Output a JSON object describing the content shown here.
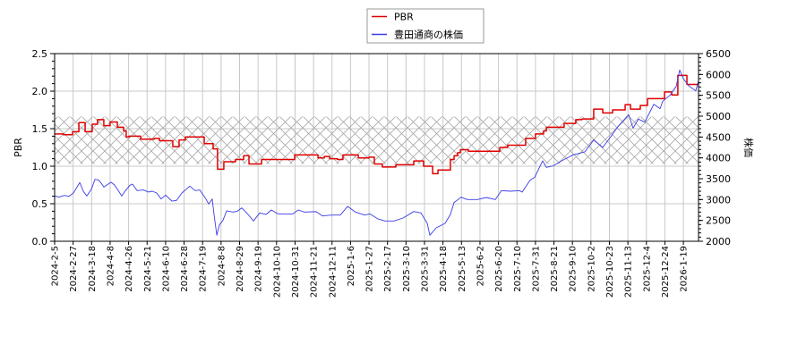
{
  "chart_data": {
    "type": "line",
    "title": "",
    "xlabel": "",
    "ylabel": "PBR",
    "y2label": "株価",
    "ylim": [
      0.0,
      2.5
    ],
    "y2lim": [
      2000,
      6500
    ],
    "grid": true,
    "legend_position": "top-center",
    "legend": [
      {
        "label": "PBR",
        "color": "#e00000"
      },
      {
        "label": "豊田通商の株価",
        "color": "#3a3ae6"
      }
    ],
    "y_ticks": [
      "0.0",
      "0.5",
      "1.0",
      "1.5",
      "2.0",
      "2.5"
    ],
    "y_tick_values": [
      0.0,
      0.5,
      1.0,
      1.5,
      2.0,
      2.5
    ],
    "y2_ticks": [
      "2000",
      "2500",
      "3000",
      "3500",
      "4000",
      "4500",
      "5000",
      "5500",
      "6000",
      "6500"
    ],
    "y2_tick_values": [
      2000,
      2500,
      3000,
      3500,
      4000,
      4500,
      5000,
      5500,
      6000,
      6500
    ],
    "categories": [
      "2024-2-5",
      "2024-2-27",
      "2024-3-18",
      "2024-4-8",
      "2024-4-26",
      "2024-5-21",
      "2024-6-10",
      "2024-6-28",
      "2024-7-19",
      "2024-8-8",
      "2024-8-29",
      "2024-9-19",
      "2024-10-10",
      "2024-10-31",
      "2024-11-21",
      "2024-12-11",
      "2025-1-6",
      "2025-1-27",
      "2025-2-17",
      "2025-3-10",
      "2025-3-31",
      "2025-4-18",
      "2025-5-13",
      "2025-6-2",
      "2025-6-20",
      "2025-7-10",
      "2025-7-31",
      "2025-8-21",
      "2025-9-10",
      "2025-10-2",
      "2025-10-23",
      "2025-11-13",
      "2025-12-4",
      "2025-12-24",
      "2026-1-19"
    ],
    "shaded_band": {
      "axis": "y",
      "from": 1.03,
      "to": 1.66,
      "style": "crosshatch",
      "color": "#a0a0a0"
    },
    "series": [
      {
        "name": "PBR",
        "axis": "left",
        "color": "#e00000",
        "step": true,
        "points": [
          [
            0,
            1.43
          ],
          [
            0.48,
            1.42
          ],
          [
            0.97,
            1.46
          ],
          [
            1.31,
            1.58
          ],
          [
            1.65,
            1.46
          ],
          [
            2.03,
            1.56
          ],
          [
            2.32,
            1.62
          ],
          [
            2.66,
            1.54
          ],
          [
            3.0,
            1.59
          ],
          [
            3.39,
            1.52
          ],
          [
            3.73,
            1.47
          ],
          [
            3.87,
            1.39
          ],
          [
            4.02,
            1.4
          ],
          [
            4.65,
            1.36
          ],
          [
            5.38,
            1.37
          ],
          [
            5.67,
            1.34
          ],
          [
            6.39,
            1.26
          ],
          [
            6.73,
            1.35
          ],
          [
            7.07,
            1.39
          ],
          [
            8.09,
            1.3
          ],
          [
            8.57,
            1.23
          ],
          [
            8.81,
            0.96
          ],
          [
            9.15,
            1.06
          ],
          [
            9.78,
            1.09
          ],
          [
            10.22,
            1.14
          ],
          [
            10.51,
            1.03
          ],
          [
            11.19,
            1.09
          ],
          [
            12.98,
            1.15
          ],
          [
            14.24,
            1.11
          ],
          [
            14.58,
            1.13
          ],
          [
            14.87,
            1.1
          ],
          [
            15.3,
            1.09
          ],
          [
            15.59,
            1.15
          ],
          [
            16.42,
            1.11
          ],
          [
            17.0,
            1.12
          ],
          [
            17.29,
            1.03
          ],
          [
            17.72,
            0.99
          ],
          [
            18.45,
            1.02
          ],
          [
            19.42,
            1.07
          ],
          [
            19.95,
            1.0
          ],
          [
            20.44,
            0.9
          ],
          [
            20.73,
            0.95
          ],
          [
            21.4,
            1.09
          ],
          [
            21.6,
            1.14
          ],
          [
            21.79,
            1.18
          ],
          [
            21.94,
            1.22
          ],
          [
            22.37,
            1.2
          ],
          [
            24.07,
            1.25
          ],
          [
            24.5,
            1.28
          ],
          [
            25.47,
            1.37
          ],
          [
            26.0,
            1.43
          ],
          [
            26.44,
            1.47
          ],
          [
            26.59,
            1.52
          ],
          [
            27.55,
            1.57
          ],
          [
            28.18,
            1.62
          ],
          [
            28.52,
            1.63
          ],
          [
            29.15,
            1.76
          ],
          [
            29.64,
            1.71
          ],
          [
            30.17,
            1.75
          ],
          [
            30.85,
            1.82
          ],
          [
            31.14,
            1.76
          ],
          [
            31.67,
            1.81
          ],
          [
            32.06,
            1.9
          ],
          [
            32.98,
            1.99
          ],
          [
            33.37,
            1.95
          ],
          [
            33.7,
            2.21
          ],
          [
            34.19,
            2.09
          ],
          [
            34.82,
            2.09
          ]
        ]
      },
      {
        "name": "豊田通商の株価",
        "axis": "right",
        "color": "#3a3ae6",
        "step": false,
        "points": [
          [
            0,
            3085
          ],
          [
            0.24,
            3060
          ],
          [
            0.53,
            3100
          ],
          [
            0.77,
            3075
          ],
          [
            1.02,
            3160
          ],
          [
            1.21,
            3300
          ],
          [
            1.36,
            3410
          ],
          [
            1.55,
            3200
          ],
          [
            1.74,
            3086
          ],
          [
            1.99,
            3250
          ],
          [
            2.18,
            3485
          ],
          [
            2.37,
            3470
          ],
          [
            2.52,
            3393
          ],
          [
            2.66,
            3300
          ],
          [
            2.86,
            3360
          ],
          [
            3.05,
            3414
          ],
          [
            3.24,
            3350
          ],
          [
            3.44,
            3215
          ],
          [
            3.63,
            3086
          ],
          [
            3.83,
            3215
          ],
          [
            4.07,
            3343
          ],
          [
            4.21,
            3371
          ],
          [
            4.46,
            3215
          ],
          [
            4.79,
            3230
          ],
          [
            5.08,
            3179
          ],
          [
            5.28,
            3200
          ],
          [
            5.52,
            3157
          ],
          [
            5.76,
            3014
          ],
          [
            6.0,
            3107
          ],
          [
            6.34,
            2964
          ],
          [
            6.59,
            2980
          ],
          [
            6.88,
            3157
          ],
          [
            7.12,
            3250
          ],
          [
            7.31,
            3322
          ],
          [
            7.6,
            3215
          ],
          [
            7.85,
            3230
          ],
          [
            8.18,
            3014
          ],
          [
            8.33,
            2893
          ],
          [
            8.52,
            3014
          ],
          [
            8.62,
            2643
          ],
          [
            8.77,
            2143
          ],
          [
            8.91,
            2393
          ],
          [
            9.1,
            2500
          ],
          [
            9.3,
            2729
          ],
          [
            9.64,
            2700
          ],
          [
            9.88,
            2720
          ],
          [
            10.12,
            2800
          ],
          [
            10.46,
            2643
          ],
          [
            10.75,
            2486
          ],
          [
            11.09,
            2679
          ],
          [
            11.43,
            2643
          ],
          [
            11.72,
            2750
          ],
          [
            12.06,
            2660
          ],
          [
            12.54,
            2650
          ],
          [
            12.88,
            2657
          ],
          [
            13.17,
            2750
          ],
          [
            13.51,
            2700
          ],
          [
            14.14,
            2710
          ],
          [
            14.48,
            2607
          ],
          [
            14.96,
            2629
          ],
          [
            15.45,
            2629
          ],
          [
            15.84,
            2836
          ],
          [
            16.27,
            2700
          ],
          [
            16.76,
            2629
          ],
          [
            17.05,
            2657
          ],
          [
            17.48,
            2536
          ],
          [
            17.87,
            2486
          ],
          [
            18.35,
            2486
          ],
          [
            18.84,
            2557
          ],
          [
            19.42,
            2714
          ],
          [
            19.81,
            2679
          ],
          [
            20.15,
            2429
          ],
          [
            20.29,
            2143
          ],
          [
            20.63,
            2321
          ],
          [
            21.11,
            2429
          ],
          [
            21.4,
            2643
          ],
          [
            21.6,
            2929
          ],
          [
            21.98,
            3057
          ],
          [
            22.32,
            3000
          ],
          [
            22.86,
            3000
          ],
          [
            23.34,
            3050
          ],
          [
            23.83,
            3000
          ],
          [
            24.16,
            3215
          ],
          [
            24.65,
            3200
          ],
          [
            25.13,
            3215
          ],
          [
            25.28,
            3179
          ],
          [
            25.71,
            3464
          ],
          [
            25.96,
            3536
          ],
          [
            26.39,
            3929
          ],
          [
            26.59,
            3772
          ],
          [
            26.97,
            3810
          ],
          [
            27.41,
            3929
          ],
          [
            28.04,
            4072
          ],
          [
            28.67,
            4143
          ],
          [
            29.15,
            4429
          ],
          [
            29.64,
            4250
          ],
          [
            30.12,
            4536
          ],
          [
            30.46,
            4750
          ],
          [
            31.04,
            5036
          ],
          [
            31.28,
            4714
          ],
          [
            31.57,
            4929
          ],
          [
            31.91,
            4857
          ],
          [
            32.4,
            5286
          ],
          [
            32.74,
            5179
          ],
          [
            32.88,
            5357
          ],
          [
            33.27,
            5500
          ],
          [
            33.61,
            5714
          ],
          [
            33.8,
            6107
          ],
          [
            34.0,
            5893
          ],
          [
            34.33,
            5714
          ],
          [
            34.67,
            5607
          ],
          [
            34.82,
            5857
          ]
        ]
      }
    ]
  }
}
